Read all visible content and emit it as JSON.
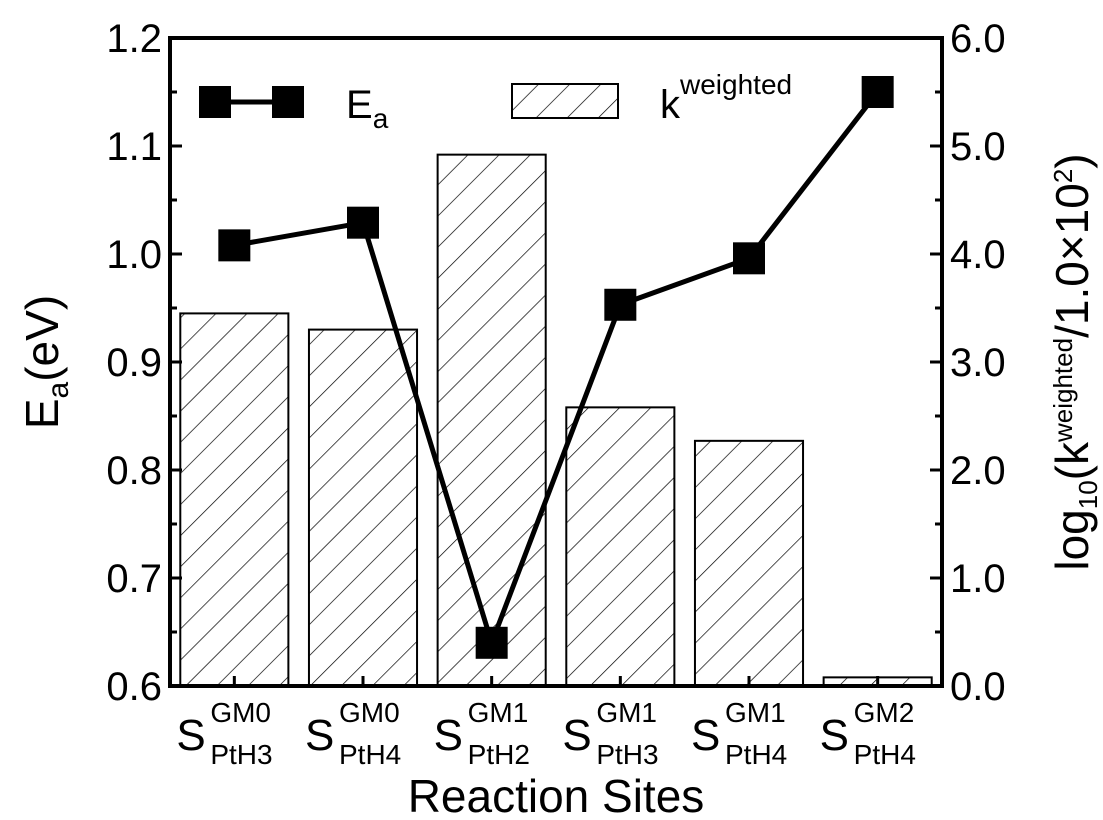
{
  "chart_data": {
    "type": "bar",
    "categories": [
      {
        "base": "S",
        "sup": "GM0",
        "sub": "PtH3"
      },
      {
        "base": "S",
        "sup": "GM0",
        "sub": "PtH4"
      },
      {
        "base": "S",
        "sup": "GM1",
        "sub": "PtH2"
      },
      {
        "base": "S",
        "sup": "GM1",
        "sub": "PtH3"
      },
      {
        "base": "S",
        "sup": "GM1",
        "sub": "PtH4"
      },
      {
        "base": "S",
        "sup": "GM2",
        "sub": "PtH4"
      }
    ],
    "series": [
      {
        "name": "E_a",
        "kind": "line",
        "axis": "left",
        "values": [
          1.008,
          1.029,
          0.64,
          0.953,
          0.996,
          1.15
        ]
      },
      {
        "name": "k^weighted",
        "kind": "bar",
        "axis": "right",
        "pattern": "hatched",
        "values": [
          3.45,
          3.3,
          4.92,
          2.58,
          2.27,
          0.08
        ]
      }
    ],
    "xlabel": "Reaction Sites",
    "ylabel": {
      "base": "E",
      "sub": "a",
      "rest": "(eV)"
    },
    "y2label": {
      "pre": "log",
      "sub": "10",
      "mid": "(k",
      "sup": "weighted",
      "post": "/1.0×10",
      "sup2": "2",
      "end": ")"
    },
    "ylim": [
      0.6,
      1.2
    ],
    "y2lim": [
      0.0,
      6.0
    ],
    "yticks": [
      "0.6",
      "0.7",
      "0.8",
      "0.9",
      "1.0",
      "1.1",
      "1.2"
    ],
    "y2ticks": [
      "0.0",
      "1.0",
      "2.0",
      "3.0",
      "4.0",
      "5.0",
      "6.0"
    ],
    "legend": {
      "position": "top",
      "line_label": {
        "base": "E",
        "sub": "a"
      },
      "bar_label": {
        "base": "k",
        "sup": "weighted"
      }
    },
    "grid": false,
    "colors": {
      "line": "#000000",
      "bar_fill": "#ffffff",
      "hatch": "#000000"
    }
  }
}
